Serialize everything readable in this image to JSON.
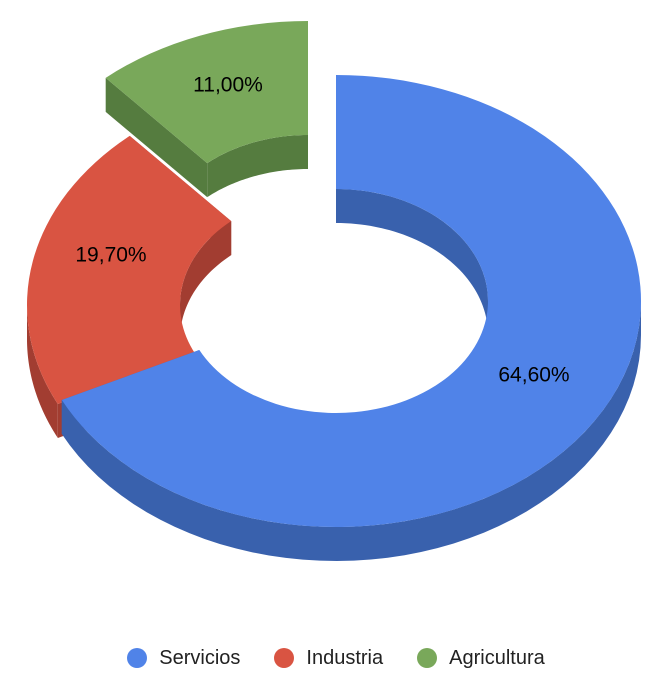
{
  "chart_data": {
    "type": "pie",
    "variant": "3d-donut-exploded",
    "slices": [
      {
        "name": "Servicios",
        "value": 64.6,
        "label": "64,60%",
        "color": "#5083e8",
        "side_color": "#3961ad"
      },
      {
        "name": "Industria",
        "value": 19.7,
        "label": "19,70%",
        "color": "#d95442",
        "side_color": "#a23d31"
      },
      {
        "name": "Agricultura",
        "value": 11.0,
        "label": "11,00%",
        "color": "#79a85a",
        "side_color": "#557c3f"
      }
    ],
    "legend_position": "bottom"
  }
}
